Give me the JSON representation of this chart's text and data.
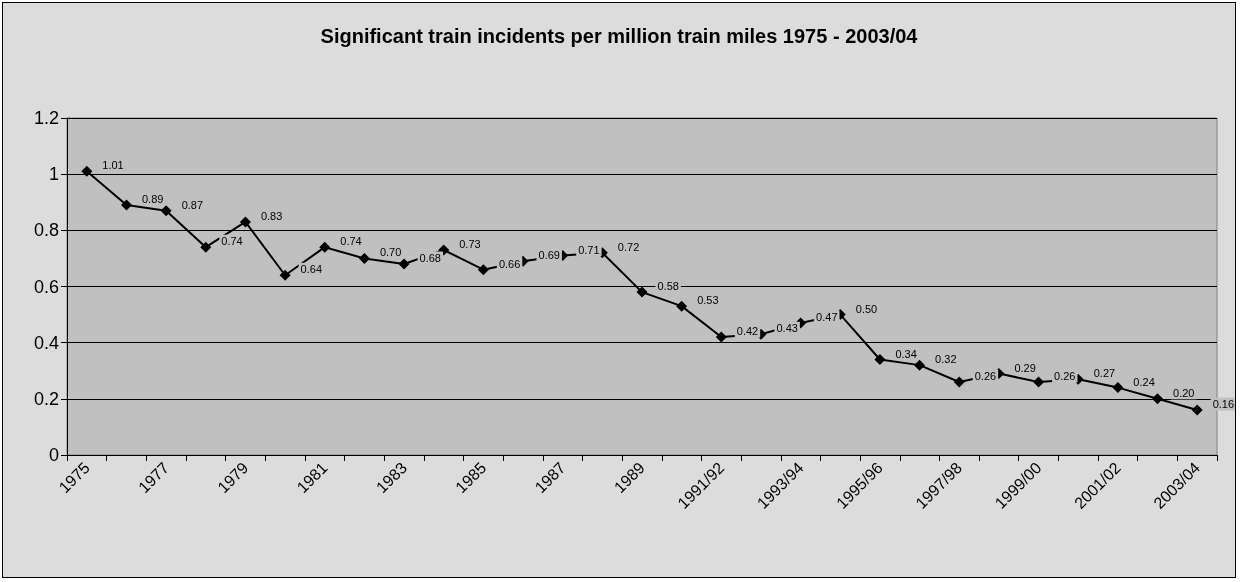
{
  "chart_data": {
    "type": "line",
    "title": "Significant train incidents per million train miles 1975 - 2003/04",
    "categories": [
      "1975",
      null,
      "1977",
      null,
      "1979",
      null,
      "1981",
      null,
      "1983",
      null,
      "1985",
      null,
      "1987",
      null,
      "1989",
      null,
      "1991/92",
      null,
      "1993/94",
      null,
      "1995/96",
      null,
      "1997/98",
      null,
      "1999/00",
      null,
      "2001/02",
      null,
      "2003/04"
    ],
    "series": [
      {
        "color": "#000000",
        "values": [
          1.01,
          0.89,
          0.87,
          0.74,
          0.83,
          0.64,
          0.74,
          0.7,
          0.68,
          0.73,
          0.66,
          0.69,
          0.71,
          0.72,
          0.58,
          0.53,
          0.42,
          0.43,
          0.47,
          0.5,
          0.34,
          0.32,
          0.26,
          0.29,
          0.26,
          0.27,
          0.24,
          0.2,
          0.16
        ],
        "value_labels": [
          "1.01",
          "0.89",
          "0.87",
          "0.74",
          "0.83",
          "0.64",
          "0.74",
          "0.70",
          "0.68",
          "0.73",
          "0.66",
          "0.69",
          "0.71",
          "0.72",
          "0.58",
          "0.53",
          "0.42",
          "0.43",
          "0.47",
          "0.50",
          "0.34",
          "0.32",
          "0.26",
          "0.29",
          "0.26",
          "0.27",
          "0.24",
          "0.20",
          "0.16"
        ]
      }
    ],
    "ylim": [
      0,
      1.2
    ],
    "yticks": [
      0,
      0.2,
      0.4,
      0.6,
      0.8,
      1,
      1.2
    ],
    "grid": "y",
    "marker": "diamond",
    "line_style": "solid"
  }
}
